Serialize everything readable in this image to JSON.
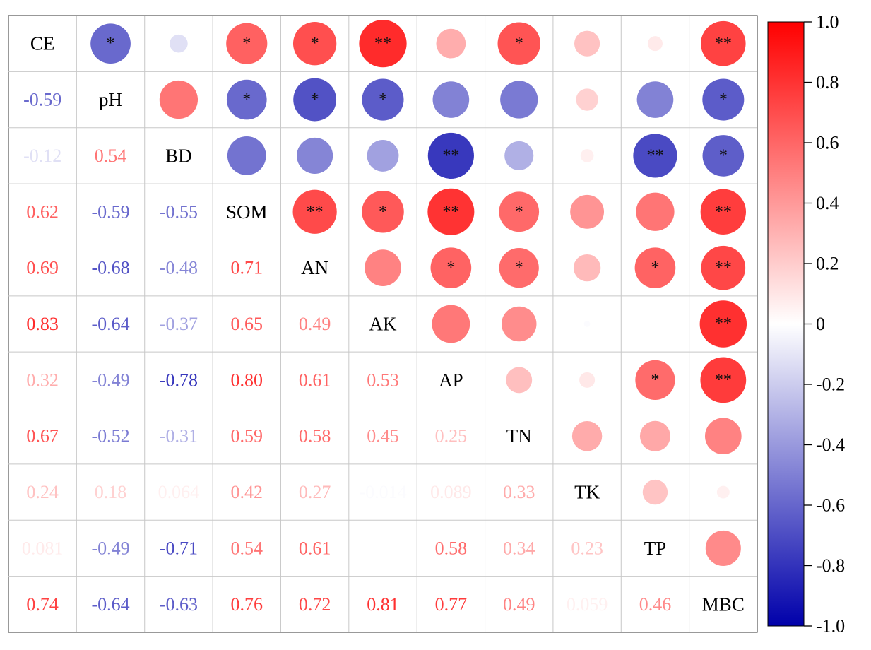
{
  "chart_data": {
    "type": "heatmap",
    "variables": [
      "CE",
      "pH",
      "BD",
      "SOM",
      "AN",
      "AK",
      "AP",
      "TN",
      "TK",
      "TP",
      "MBC"
    ],
    "matrix": [
      [
        1,
        -0.59,
        -0.12,
        0.62,
        0.69,
        0.83,
        0.32,
        0.67,
        0.24,
        0.081,
        0.74
      ],
      [
        -0.59,
        1,
        0.54,
        -0.59,
        -0.68,
        -0.64,
        -0.49,
        -0.52,
        0.18,
        -0.49,
        -0.64
      ],
      [
        -0.12,
        0.54,
        1,
        -0.55,
        -0.48,
        -0.37,
        -0.78,
        -0.31,
        0.064,
        -0.71,
        -0.63
      ],
      [
        0.62,
        -0.59,
        -0.55,
        1,
        0.71,
        0.65,
        0.8,
        0.59,
        0.42,
        0.54,
        0.76
      ],
      [
        0.69,
        -0.68,
        -0.48,
        0.71,
        1,
        0.49,
        0.61,
        0.58,
        0.27,
        0.61,
        0.72
      ],
      [
        0.83,
        -0.64,
        -0.37,
        0.65,
        0.49,
        1,
        0.53,
        0.45,
        -0.014,
        0,
        0.81
      ],
      [
        0.32,
        -0.49,
        -0.78,
        0.8,
        0.61,
        0.53,
        1,
        0.25,
        0.089,
        0.58,
        0.77
      ],
      [
        0.67,
        -0.52,
        -0.31,
        0.59,
        0.58,
        0.45,
        0.25,
        1,
        0.33,
        0.34,
        0.49
      ],
      [
        0.24,
        0.18,
        0.064,
        0.42,
        0.27,
        -0.014,
        0.089,
        0.33,
        1,
        0.23,
        0.059
      ],
      [
        0.081,
        -0.49,
        -0.71,
        0.54,
        0.61,
        0,
        0.58,
        0.34,
        0.23,
        1,
        0.46
      ],
      [
        0.74,
        -0.64,
        -0.63,
        0.76,
        0.72,
        0.81,
        0.77,
        0.49,
        0.059,
        0.46,
        1
      ]
    ],
    "lower_text": [
      [
        null,
        null,
        null,
        null,
        null,
        null,
        null,
        null,
        null,
        null,
        null
      ],
      [
        "-0.59",
        null,
        null,
        null,
        null,
        null,
        null,
        null,
        null,
        null,
        null
      ],
      [
        "-0.12",
        "0.54",
        null,
        null,
        null,
        null,
        null,
        null,
        null,
        null,
        null
      ],
      [
        "0.62",
        "-0.59",
        "-0.55",
        null,
        null,
        null,
        null,
        null,
        null,
        null,
        null
      ],
      [
        "0.69",
        "-0.68",
        "-0.48",
        "0.71",
        null,
        null,
        null,
        null,
        null,
        null,
        null
      ],
      [
        "0.83",
        "-0.64",
        "-0.37",
        "0.65",
        "0.49",
        null,
        null,
        null,
        null,
        null,
        null
      ],
      [
        "0.32",
        "-0.49",
        "-0.78",
        "0.80",
        "0.61",
        "0.53",
        null,
        null,
        null,
        null,
        null
      ],
      [
        "0.67",
        "-0.52",
        "-0.31",
        "0.59",
        "0.58",
        "0.45",
        "0.25",
        null,
        null,
        null,
        null
      ],
      [
        "0.24",
        "0.18",
        "0.064",
        "0.42",
        "0.27",
        "-0.014",
        "0.089",
        "0.33",
        null,
        null,
        null
      ],
      [
        "0.081",
        "-0.49",
        "-0.71",
        "0.54",
        "0.61",
        "",
        "0.58",
        "0.34",
        "0.23",
        null,
        null
      ],
      [
        "0.74",
        "-0.64",
        "-0.63",
        "0.76",
        "0.72",
        "0.81",
        "0.77",
        "0.49",
        "0.059",
        "0.46",
        null
      ]
    ],
    "significance": [
      [
        "",
        "*",
        "",
        "*",
        "*",
        "**",
        "",
        "*",
        "",
        "",
        "**"
      ],
      [
        "",
        "",
        "",
        "*",
        "*",
        "*",
        "",
        "",
        "",
        "",
        "*"
      ],
      [
        "",
        "",
        "",
        "",
        "",
        "",
        "**",
        "",
        "",
        "**",
        "*"
      ],
      [
        "",
        "",
        "",
        "",
        "**",
        "*",
        "**",
        "*",
        "",
        "",
        "**"
      ],
      [
        "",
        "",
        "",
        "",
        "",
        "",
        "*",
        "*",
        "",
        "*",
        "**"
      ],
      [
        "",
        "",
        "",
        "",
        "",
        "",
        "",
        "",
        "",
        "",
        "**"
      ],
      [
        "",
        "",
        "",
        "",
        "",
        "",
        "",
        "",
        "",
        "*",
        "**"
      ],
      [
        "",
        "",
        "",
        "",
        "",
        "",
        "",
        "",
        "",
        "",
        ""
      ],
      [
        "",
        "",
        "",
        "",
        "",
        "",
        "",
        "",
        "",
        "",
        ""
      ],
      [
        "",
        "",
        "",
        "",
        "",
        "",
        "",
        "",
        "",
        "",
        ""
      ],
      [
        "",
        "",
        "",
        "",
        "",
        "",
        "",
        "",
        "",
        "",
        ""
      ]
    ],
    "upper_display": "circle",
    "lower_display": "number",
    "diagonal_display": "variable-name",
    "colorscale": {
      "min": -1.0,
      "mid": 0,
      "max": 1.0,
      "min_color": "#0000aa",
      "mid_color": "#ffffff",
      "max_color": "#ff0000",
      "ticks": [
        "1.0",
        "0.8",
        "0.6",
        "0.4",
        "0.2",
        "0",
        "-0.2",
        "-0.4",
        "-0.6",
        "-0.8",
        "-1.0"
      ]
    },
    "legend_position": "right",
    "grid": true,
    "title": "",
    "xlabel": "",
    "ylabel": ""
  }
}
